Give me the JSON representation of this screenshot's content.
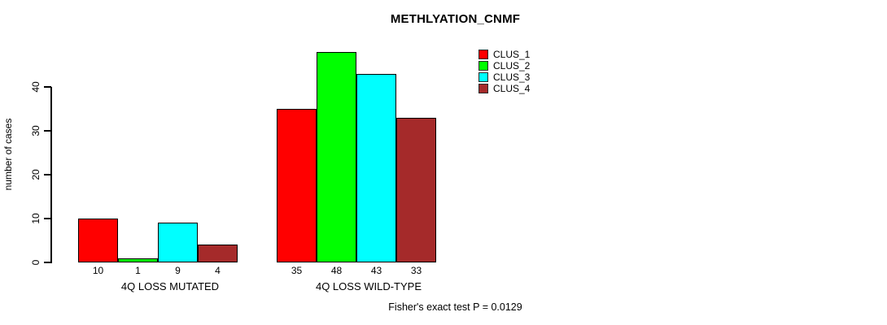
{
  "chart_data": {
    "type": "bar",
    "title": "METHLYATION_CNMF",
    "ylabel": "number of cases",
    "xlabel": "",
    "categories": [
      "4Q LOSS MUTATED",
      "4Q LOSS WILD-TYPE"
    ],
    "series": [
      {
        "name": "CLUS_1",
        "color": "#FF0000",
        "values": [
          10,
          35
        ]
      },
      {
        "name": "CLUS_2",
        "color": "#00FF00",
        "values": [
          1,
          48
        ]
      },
      {
        "name": "CLUS_3",
        "color": "#00FFFF",
        "values": [
          9,
          43
        ]
      },
      {
        "name": "CLUS_4",
        "color": "#A52A2A",
        "values": [
          4,
          33
        ]
      }
    ],
    "yticks": [
      0,
      10,
      20,
      30,
      40
    ],
    "ylim": [
      0,
      49.6
    ],
    "grid": false,
    "legend_position": "top-right",
    "bar_value_labels": true,
    "annotation": "Fisher's exact test P = 0.0129",
    "axis_color": "#000000",
    "bar_border_color": "#000000"
  }
}
